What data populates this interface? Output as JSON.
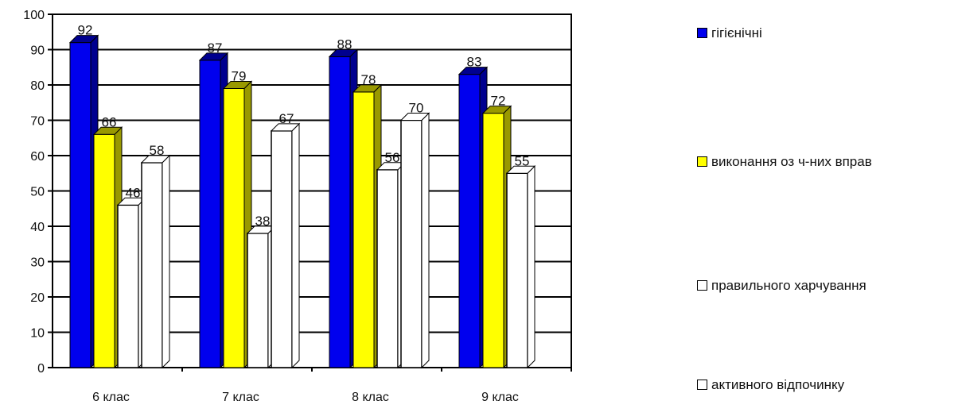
{
  "chart_data": {
    "type": "bar",
    "title": "",
    "xlabel": "",
    "ylabel": "",
    "categories": [
      "6 клас",
      "7 клас",
      "8 клас",
      "9 клас"
    ],
    "series": [
      {
        "name": "гігієнічні",
        "color": "#0000ee",
        "values": [
          92,
          87,
          88,
          83
        ]
      },
      {
        "name": "виконання оз ч-них вправ",
        "color": "#ffff00",
        "values": [
          66,
          79,
          78,
          72
        ]
      },
      {
        "name": "правильного харчування",
        "color": "#ffffff",
        "values": [
          46,
          38,
          56,
          55
        ]
      },
      {
        "name": "активного відпочинку",
        "color": "#ffffff",
        "values": [
          58,
          67,
          70,
          0
        ]
      }
    ],
    "data_labels": [
      [
        "92",
        "87",
        "88",
        "83"
      ],
      [
        "66",
        "79",
        "78",
        "72"
      ],
      [
        "46",
        "38",
        "56",
        "55"
      ],
      [
        "58",
        "67",
        "70",
        ""
      ]
    ],
    "y_ticks": [
      "0",
      "10",
      "20",
      "30",
      "40",
      "50",
      "60",
      "70",
      "80",
      "90",
      "100"
    ],
    "ylim": [
      0,
      100
    ],
    "grid": true,
    "legend_position": "right"
  }
}
